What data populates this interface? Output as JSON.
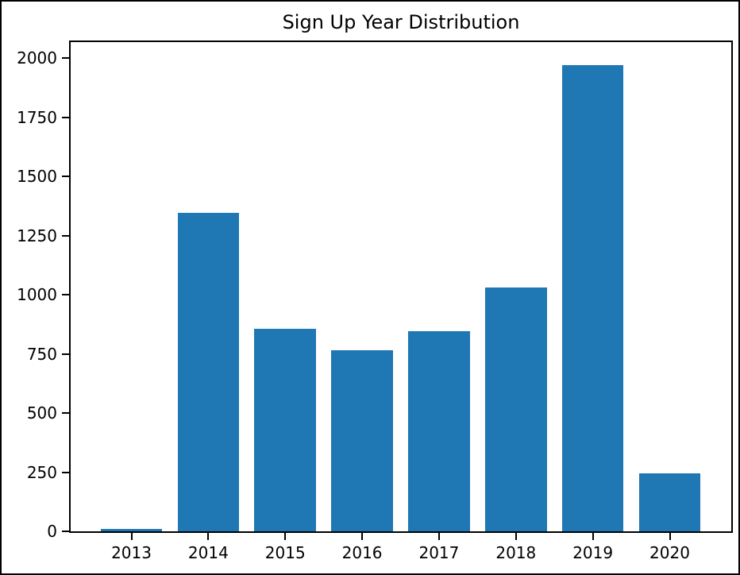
{
  "window": {
    "background": "#ffffff",
    "frame_border_color": "#000000"
  },
  "chart_data": {
    "type": "bar",
    "title": "Sign Up Year Distribution",
    "categories": [
      "2013",
      "2014",
      "2015",
      "2016",
      "2017",
      "2018",
      "2019",
      "2020"
    ],
    "values": [
      10,
      1345,
      855,
      765,
      845,
      1030,
      1970,
      245
    ],
    "xlabel": "",
    "ylabel": "",
    "yticks": [
      0,
      250,
      500,
      750,
      1000,
      1250,
      1500,
      1750,
      2000
    ],
    "ylim": [
      0,
      2068
    ],
    "xlim": [
      -0.79,
      7.8
    ],
    "bar_width_units": 0.8,
    "bar_color": "#1f77b4",
    "axis_color": "#000000",
    "text_color": "#000000",
    "grid": false,
    "legend": "none"
  }
}
